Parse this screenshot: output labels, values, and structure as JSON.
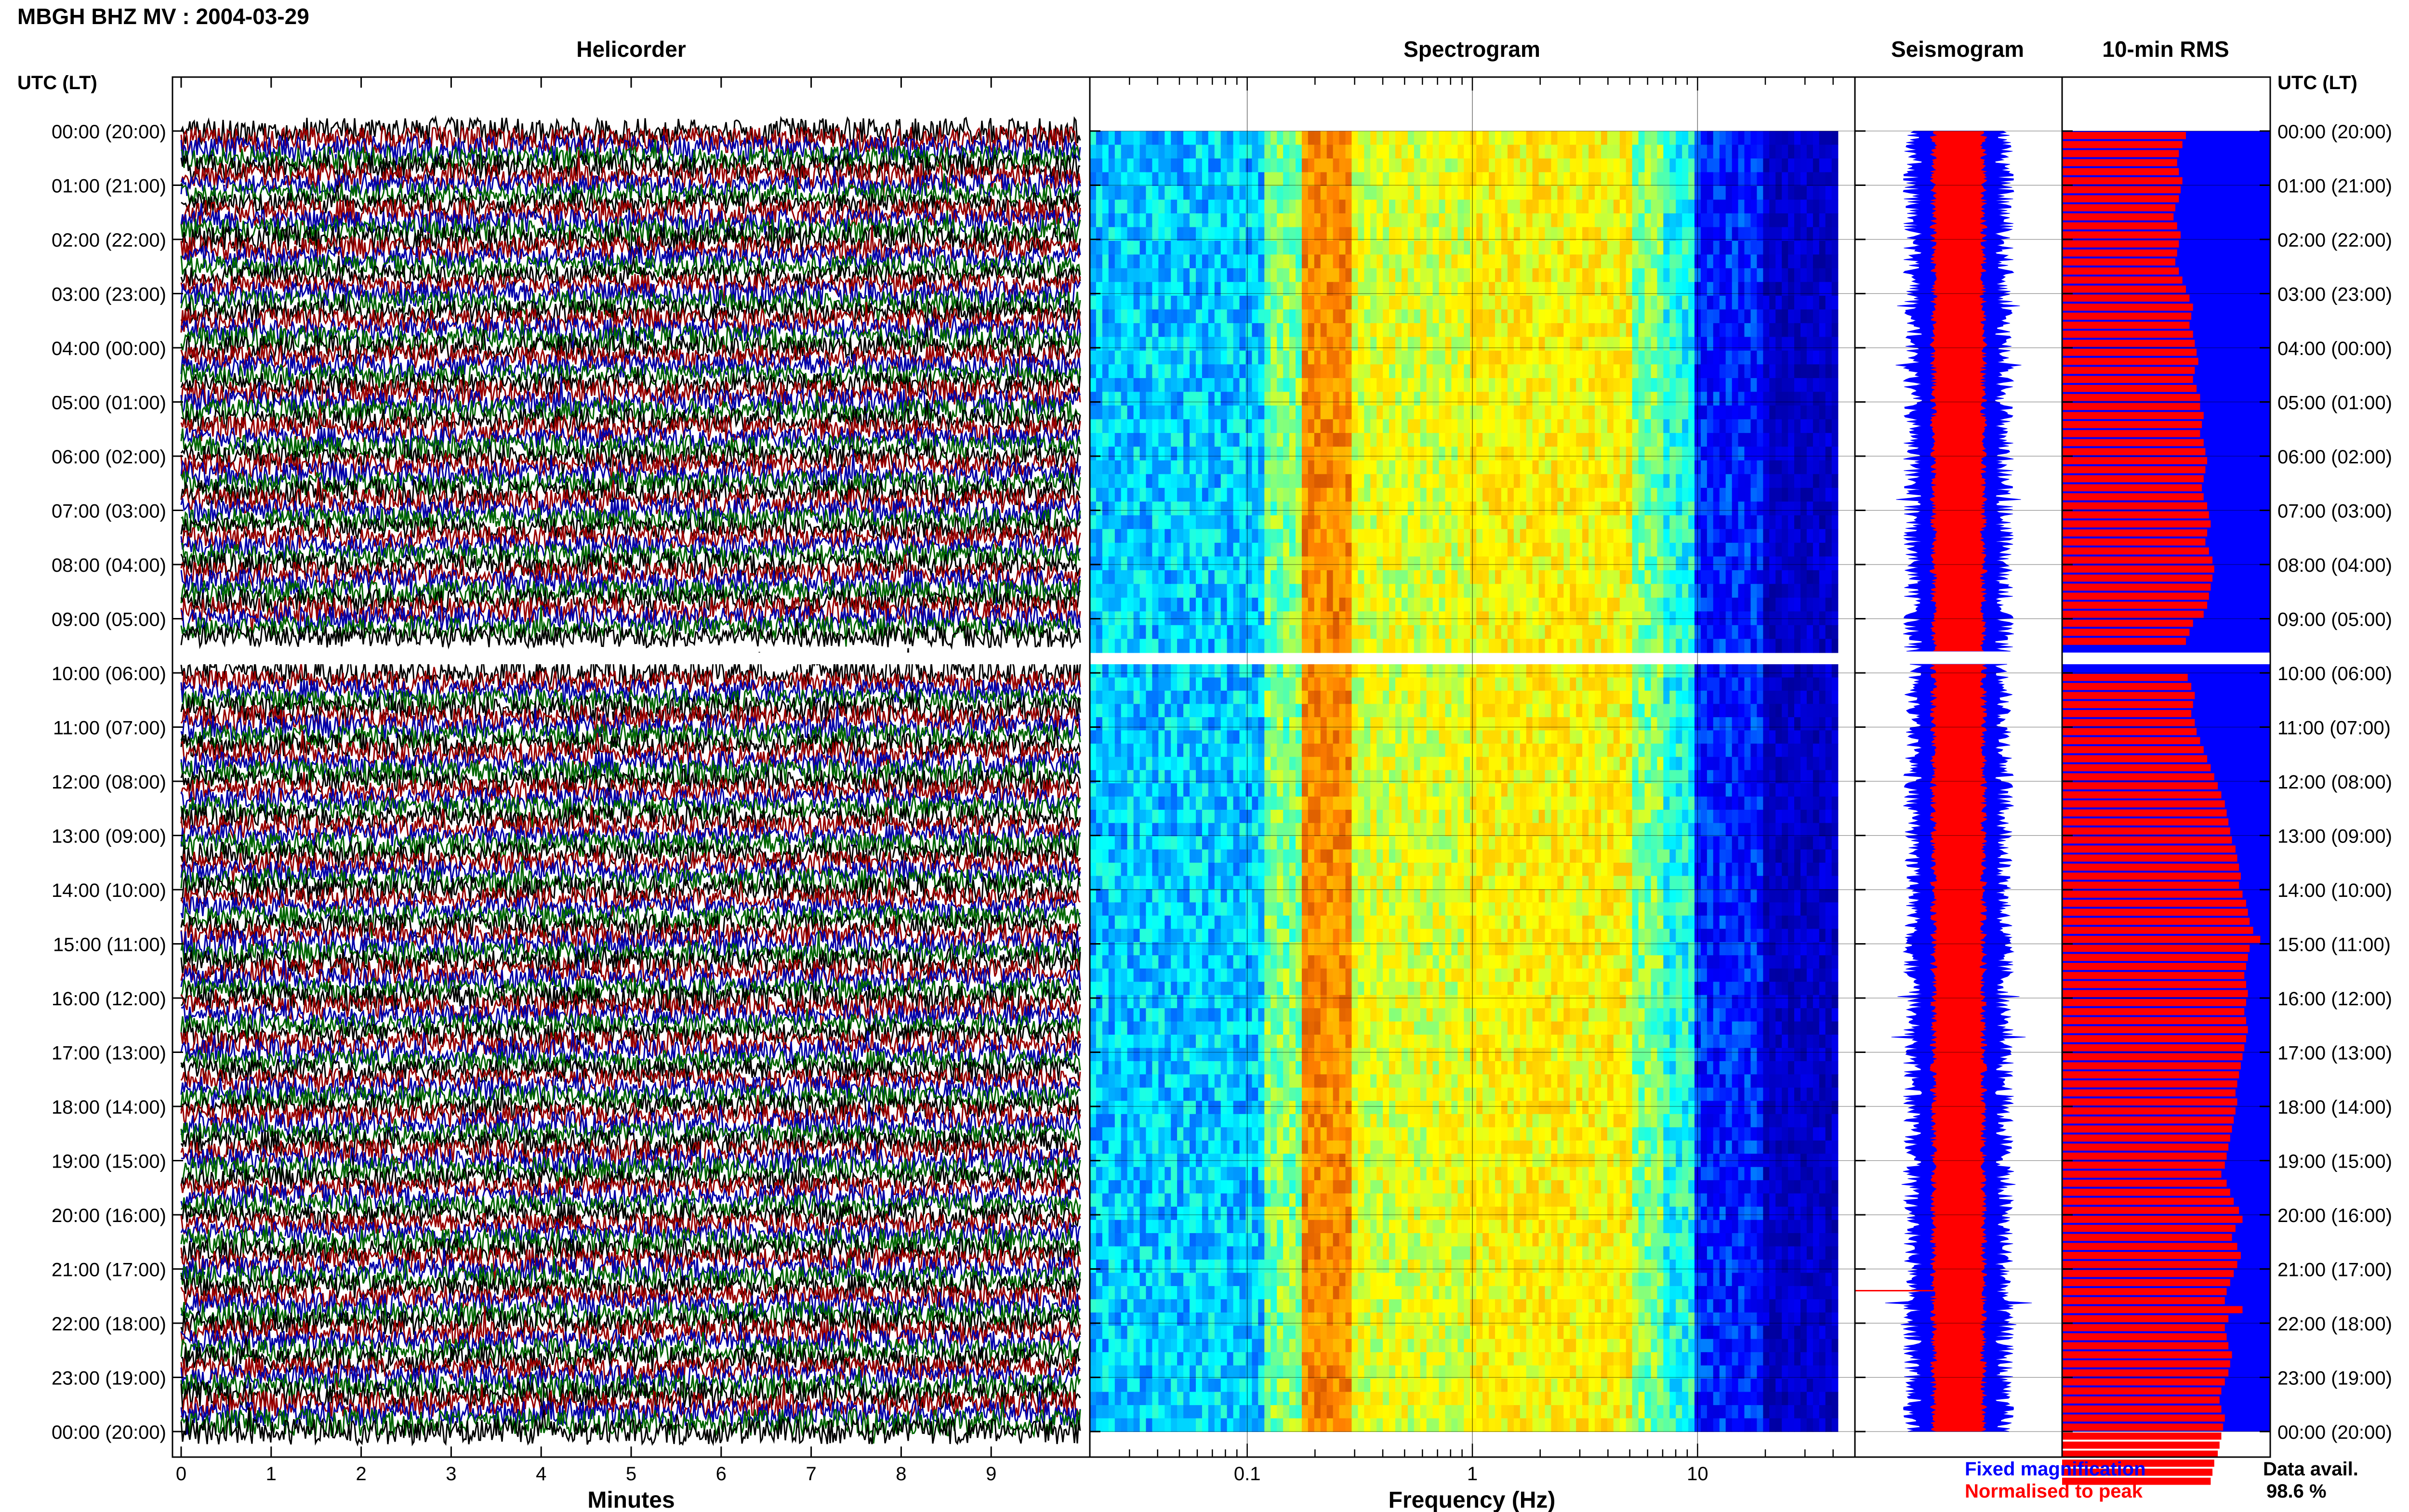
{
  "header": {
    "title": "MBGH BHZ MV : 2004-03-29"
  },
  "panels": {
    "helicorder": "Helicorder",
    "spectrogram": "Spectrogram",
    "seismogram": "Seismogram",
    "rms": "10-min RMS"
  },
  "time_axis_label": "UTC (LT)",
  "time_labels": [
    "00:00 (20:00)",
    "01:00 (21:00)",
    "02:00 (22:00)",
    "03:00 (23:00)",
    "04:00 (00:00)",
    "05:00 (01:00)",
    "06:00 (02:00)",
    "07:00 (03:00)",
    "08:00 (04:00)",
    "09:00 (05:00)",
    "10:00 (06:00)",
    "11:00 (07:00)",
    "12:00 (08:00)",
    "13:00 (09:00)",
    "14:00 (10:00)",
    "15:00 (11:00)",
    "16:00 (12:00)",
    "17:00 (13:00)",
    "18:00 (14:00)",
    "19:00 (15:00)",
    "20:00 (16:00)",
    "21:00 (17:00)",
    "22:00 (18:00)",
    "23:00 (19:00)",
    "00:00 (20:00)"
  ],
  "legend": {
    "fixed": "Fixed magnification",
    "normalised": "Normalised to peak",
    "fixed_color": "#0000ff",
    "normalised_color": "#ff0000"
  },
  "availability": {
    "label": "Data avail.",
    "value": "98.6 %"
  },
  "colors": {
    "trace_cycle": [
      "#000000",
      "#990000",
      "#0000aa",
      "#006600"
    ],
    "rms_fixed": "#0000ff",
    "rms_normalised": "#ff0000",
    "seismo_fixed": "#0000ff",
    "seismo_normalised": "#ff0000"
  },
  "chart_data": [
    {
      "type": "line",
      "panel": "Helicorder",
      "xlabel": "Minutes",
      "x_ticks": [
        "0",
        "1",
        "2",
        "3",
        "4",
        "5",
        "6",
        "7",
        "8",
        "9"
      ],
      "xlim": [
        0,
        10
      ],
      "rows_per_hour": 6,
      "gap": {
        "start_utc": "09:30",
        "end_utc": "10:00"
      }
    },
    {
      "type": "heatmap",
      "panel": "Spectrogram",
      "xlabel": "Frequency (Hz)",
      "x_scale": "log",
      "x_ticks": [
        "0.1",
        "1",
        "10"
      ],
      "xlim": [
        0.02,
        50
      ],
      "dominant_band_hz": [
        0.17,
        0.3
      ],
      "secondary_band_hz": [
        1,
        5
      ],
      "colormap": [
        "#00008f",
        "#0000ff",
        "#00ffff",
        "#ffff00",
        "#ff8000",
        "#800000"
      ]
    },
    {
      "type": "line",
      "panel": "Seismogram",
      "series": [
        {
          "name": "Fixed magnification",
          "color": "#0000ff"
        },
        {
          "name": "Normalised to peak",
          "color": "#ff0000"
        }
      ]
    },
    {
      "type": "bar",
      "panel": "10-min RMS",
      "interval_minutes": 10,
      "values": [
        0.7,
        0.68,
        0.66,
        0.65,
        0.66,
        0.68,
        0.67,
        0.66,
        0.64,
        0.63,
        0.65,
        0.67,
        0.66,
        0.65,
        0.64,
        0.66,
        0.68,
        0.7,
        0.72,
        0.74,
        0.73,
        0.72,
        0.74,
        0.75,
        0.76,
        0.77,
        0.75,
        0.74,
        0.76,
        0.78,
        0.78,
        0.8,
        0.79,
        0.78,
        0.8,
        0.81,
        0.82,
        0.81,
        0.8,
        0.79,
        0.8,
        0.82,
        0.83,
        0.84,
        0.82,
        0.81,
        0.83,
        0.85,
        0.86,
        0.85,
        0.84,
        0.83,
        0.82,
        0.8,
        0.74,
        0.72,
        0.7,
        0.69,
        0.68,
        0.67,
        0.71,
        0.73,
        0.75,
        0.74,
        0.73,
        0.75,
        0.76,
        0.78,
        0.8,
        0.82,
        0.84,
        0.86,
        0.88,
        0.9,
        0.92,
        0.93,
        0.94,
        0.95,
        0.96,
        0.98,
        0.99,
        1.0,
        1.01,
        1.0,
        1.02,
        1.04,
        1.05,
        1.06,
        1.08,
        1.12,
        1.06,
        1.05,
        1.04,
        1.03,
        1.04,
        1.05,
        1.04,
        1.03,
        1.04,
        1.05,
        1.04,
        1.03,
        1.02,
        1.01,
        1.0,
        0.99,
        0.98,
        0.99,
        0.98,
        0.97,
        0.96,
        0.95,
        0.94,
        0.93,
        0.92,
        0.9,
        0.93,
        0.95,
        0.97,
        1.0,
        1.02,
        0.98,
        0.96,
        0.99,
        1.01,
        0.99,
        0.97,
        0.95,
        0.93,
        0.92,
        1.02,
        0.94,
        0.92,
        0.93,
        0.94,
        0.96,
        0.95,
        0.94,
        0.92,
        0.9,
        0.89,
        0.9,
        0.92,
        0.91,
        0.9,
        0.89,
        0.88,
        0.86,
        0.85,
        0.84
      ]
    }
  ]
}
